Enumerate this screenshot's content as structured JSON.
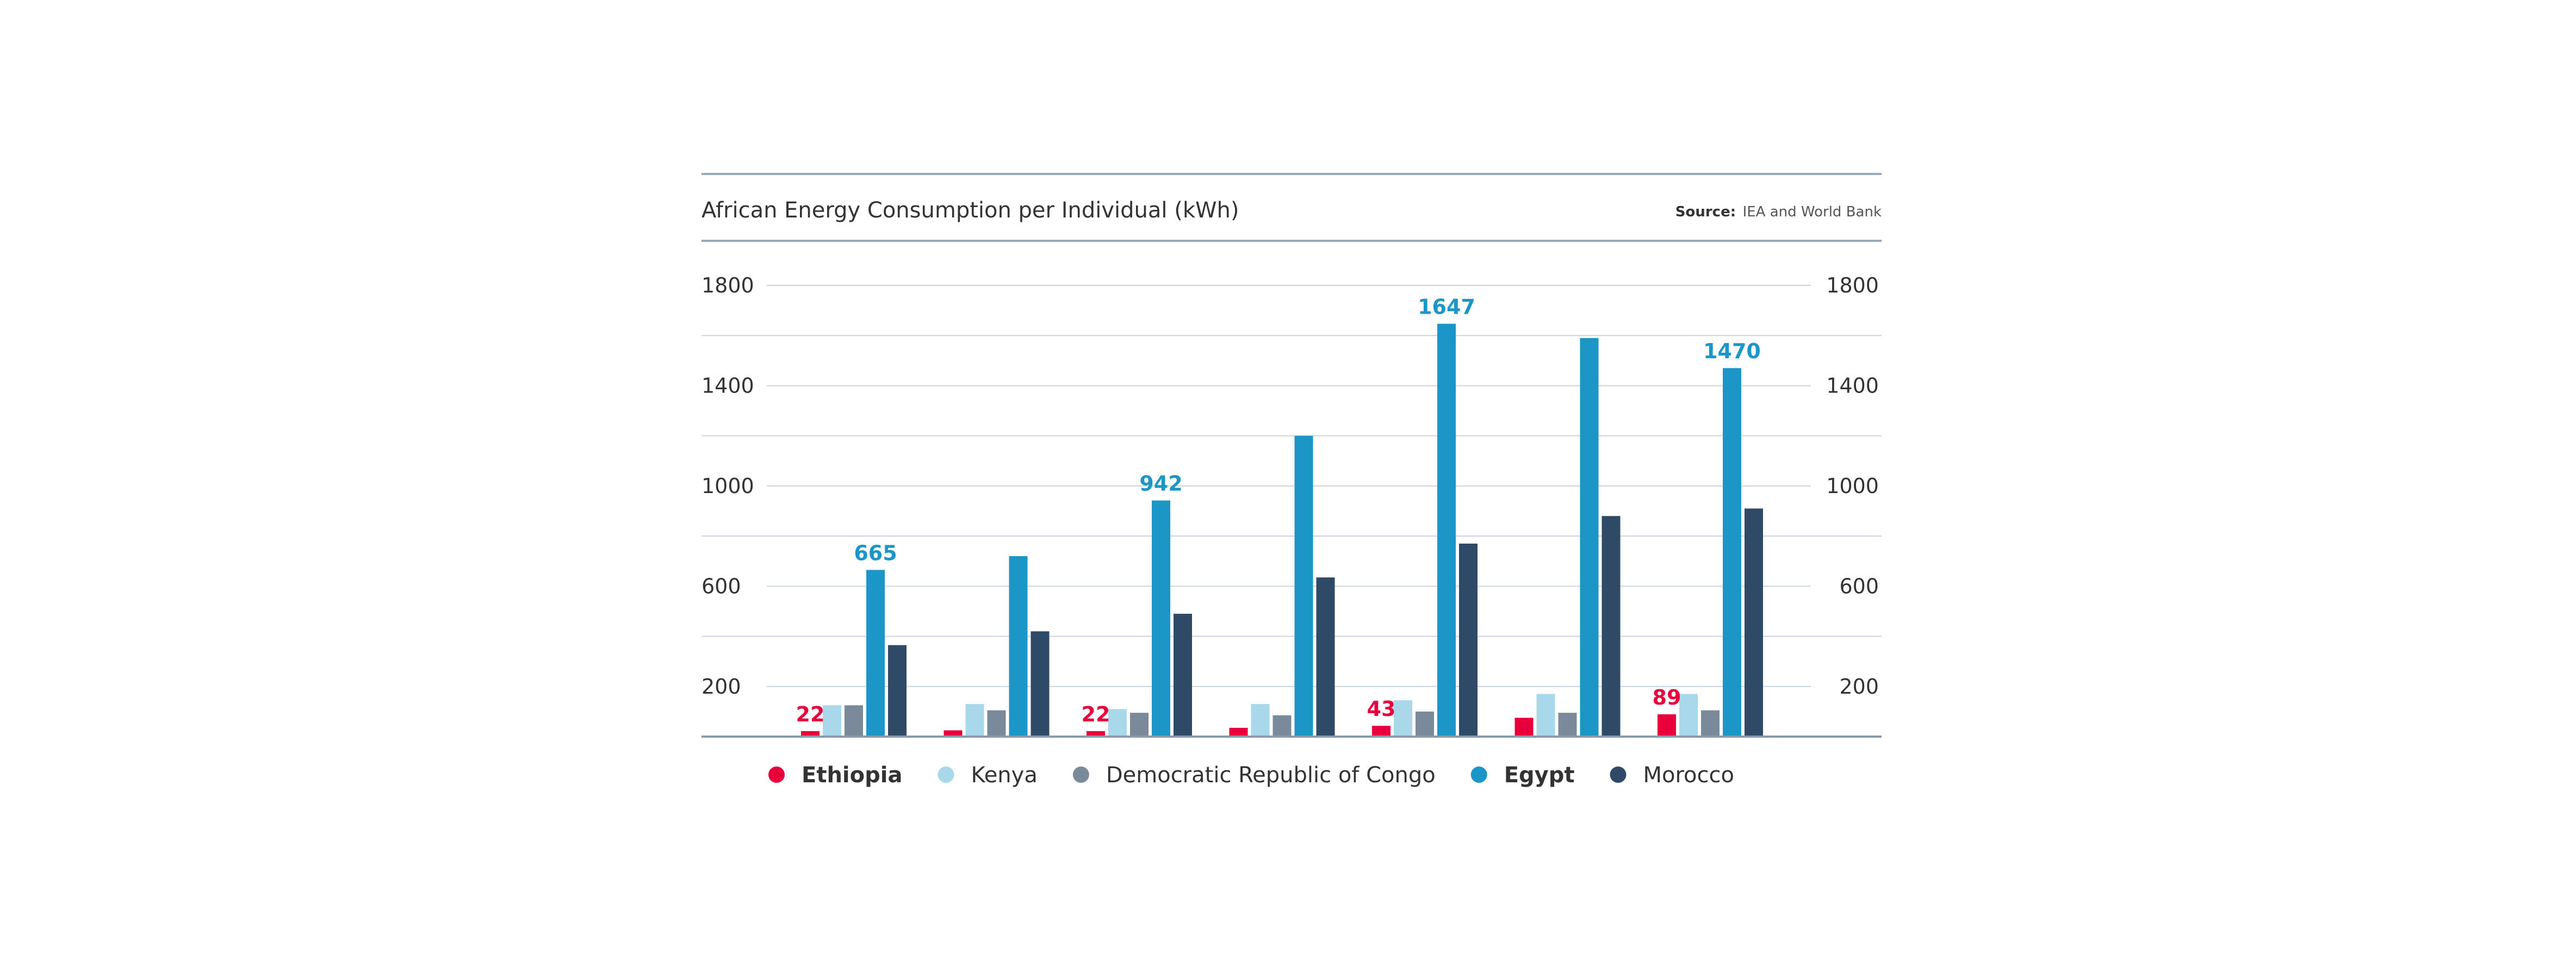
{
  "chart_data": {
    "type": "bar",
    "title": "African Energy Consumption per Individual (kWh)",
    "source_label": "Source:",
    "source": "IEA and World Bank",
    "ylim": [
      0,
      1800
    ],
    "y_ticks": [
      200,
      600,
      1000,
      1400,
      1800
    ],
    "grid": true,
    "legend_position": "bottom",
    "categories": [
      "",
      "",
      "",
      "",
      "",
      "",
      ""
    ],
    "series": [
      {
        "name": "Ethiopia",
        "color": "#E8003D",
        "bold": true,
        "values": [
          22,
          25,
          22,
          35,
          43,
          75,
          89
        ]
      },
      {
        "name": "Kenya",
        "color": "#A8D8EA",
        "bold": false,
        "values": [
          125,
          130,
          110,
          130,
          145,
          170,
          170
        ]
      },
      {
        "name": "Democratic Republic of Congo",
        "color": "#7A8A9A",
        "bold": false,
        "values": [
          125,
          105,
          95,
          85,
          100,
          95,
          105
        ]
      },
      {
        "name": "Egypt",
        "color": "#1B96C6",
        "bold": true,
        "values": [
          665,
          720,
          942,
          1200,
          1647,
          1590,
          1470
        ]
      },
      {
        "name": "Morocco",
        "color": "#2E4A66",
        "bold": false,
        "values": [
          365,
          420,
          490,
          635,
          770,
          880,
          910
        ]
      }
    ],
    "data_labels": [
      {
        "series": 0,
        "index": 0,
        "text": "22"
      },
      {
        "series": 0,
        "index": 2,
        "text": "22"
      },
      {
        "series": 0,
        "index": 4,
        "text": "43"
      },
      {
        "series": 0,
        "index": 6,
        "text": "89"
      },
      {
        "series": 3,
        "index": 0,
        "text": "665"
      },
      {
        "series": 3,
        "index": 2,
        "text": "942"
      },
      {
        "series": 3,
        "index": 4,
        "text": "1647"
      },
      {
        "series": 3,
        "index": 6,
        "text": "1470"
      }
    ]
  }
}
